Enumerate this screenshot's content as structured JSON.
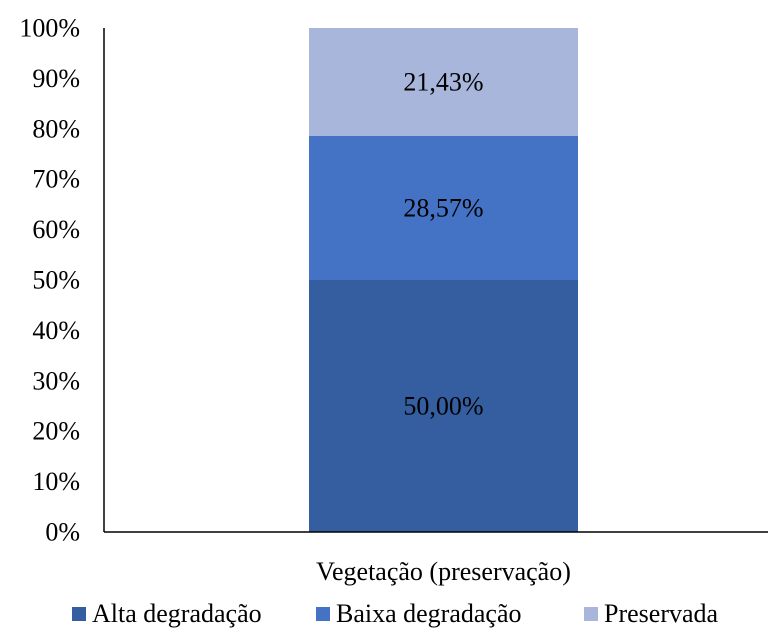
{
  "chart_data": {
    "type": "bar",
    "stacked": true,
    "percent": true,
    "categories": [
      "Vegetação (preservação)"
    ],
    "series": [
      {
        "name": "Alta degradação",
        "values": [
          50.0
        ],
        "label": "50,00%",
        "color": "#355ea1"
      },
      {
        "name": "Baixa degradação",
        "values": [
          28.57
        ],
        "label": "28,57%",
        "color": "#4472c4"
      },
      {
        "name": "Preservada",
        "values": [
          21.43
        ],
        "label": "21,43%",
        "color": "#a9b6dc"
      }
    ],
    "y_ticks": [
      "0%",
      "10%",
      "20%",
      "30%",
      "40%",
      "50%",
      "60%",
      "70%",
      "80%",
      "90%",
      "100%"
    ],
    "ylim": [
      0,
      100
    ],
    "grid": false,
    "legend_position": "bottom"
  }
}
